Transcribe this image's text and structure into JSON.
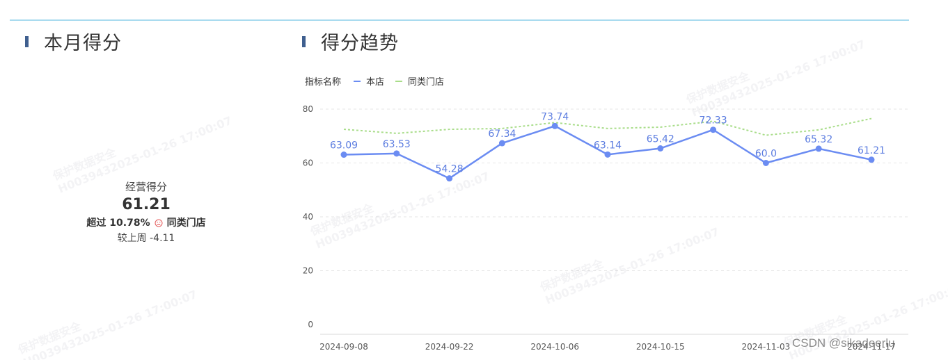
{
  "left_section": {
    "title": "本月得分",
    "score_label": "经营得分",
    "score_value": "61.21",
    "compare_prefix": "超过 10.78%",
    "compare_suffix": "同类门店",
    "week_change": "较上周 -4.11"
  },
  "right_section": {
    "title": "得分趋势"
  },
  "legend": {
    "title": "指标名称",
    "items": [
      "本店",
      "同类门店"
    ]
  },
  "colors": {
    "store_line": "#6b8cf2",
    "peer_line": "#a9dd8a",
    "section_bar": "#3f5f8f",
    "top_line": "#a9dbef",
    "sad_icon": "#e45a5a"
  },
  "chart_data": {
    "type": "line",
    "ylim": [
      0,
      80
    ],
    "yticks": [
      "0",
      "20",
      "40",
      "60",
      "80"
    ],
    "x": [
      "2024-09-08",
      "2024-09-15",
      "2024-09-22",
      "2024-09-29",
      "2024-10-06",
      "2024-10-13",
      "2024-10-15",
      "2024-10-20",
      "2024-11-03",
      "2024-11-10",
      "2024-11-17"
    ],
    "xticks": [
      "2024-09-08",
      "2024-09-22",
      "2024-10-06",
      "2024-10-15",
      "2024-11-03",
      "2024-11-17"
    ],
    "series": [
      {
        "name": "本店",
        "values": [
          63.09,
          63.53,
          54.28,
          67.34,
          73.74,
          63.14,
          65.42,
          72.33,
          60.0,
          65.32,
          61.21
        ],
        "labels": [
          "63.09",
          "63.53",
          "54.28",
          "67.34",
          "73.74",
          "63.14",
          "65.42",
          "72.33",
          "60.0",
          "65.32",
          "61.21"
        ]
      },
      {
        "name": "同类门店",
        "values": [
          72.5,
          71.0,
          72.5,
          72.8,
          75.0,
          72.8,
          73.3,
          75.5,
          70.3,
          72.3,
          76.5
        ]
      }
    ],
    "grid": true,
    "legend_position": "top-left"
  },
  "watermark_text": [
    "保护数据安全",
    "H0039432025-01-26 17:00:07"
  ],
  "footer_credit": "CSDN @sikadeerlu"
}
